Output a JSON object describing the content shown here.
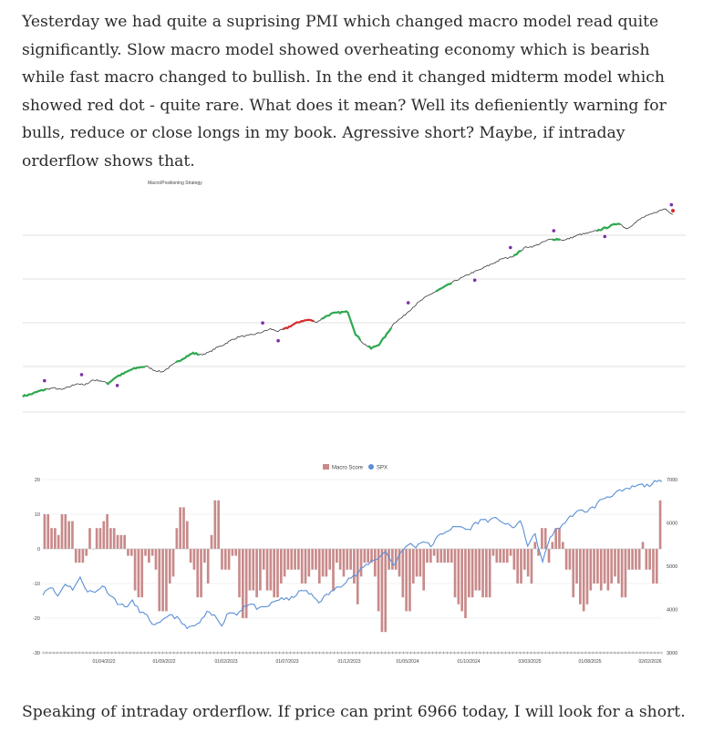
{
  "post": {
    "intro": "Yesterday we had quite a suprising PMI which changed macro model read quite significantly. Slow macro model showed overheating economy which is bearish while fast macro changed to bullish. In the end it changed midterm model which showed red dot - quite rare. What does it mean? Well its defieniently warning for bulls, reduce or close longs in my book. Agressive short? Maybe, if intraday orderflow shows that.",
    "outro": "Speaking of intraday orderflow. If price can print 6966 today, I will look for a short."
  },
  "chart_data": [
    {
      "type": "line",
      "title": "Macro/Positioning Strategy",
      "grid": true,
      "y_axis_labels_visible": false,
      "colors": {
        "price": "#3a3a3a",
        "bull": "#2ea84f",
        "bear": "#d62b2b",
        "marker": "#7b2fa8",
        "grid": "#d9d9d9"
      },
      "series_price": [
        3680,
        3710,
        3760,
        3800,
        3820,
        3790,
        3840,
        3900,
        3870,
        3960,
        3950,
        3900,
        4010,
        4070,
        4140,
        4180,
        4200,
        4130,
        4100,
        4190,
        4280,
        4360,
        4430,
        4400,
        4440,
        4520,
        4580,
        4660,
        4720,
        4730,
        4760,
        4800,
        4850,
        4810,
        4860,
        4930,
        4990,
        5010,
        4970,
        5060,
        5120,
        5140,
        5150,
        4760,
        4600,
        4510,
        4580,
        4750,
        4960,
        5050,
        5180,
        5300,
        5400,
        5480,
        5550,
        5620,
        5700,
        5760,
        5830,
        5880,
        5950,
        6010,
        6080,
        6100,
        6180,
        6280,
        6290,
        6350,
        6410,
        6420,
        6400,
        6450,
        6500,
        6520,
        6560,
        6600,
        6650,
        6700,
        6600,
        6690,
        6790,
        6840,
        6900,
        6950,
        6850
      ],
      "regimes": [
        {
          "state": "bull",
          "from": 0,
          "to": 3
        },
        {
          "state": "bull",
          "from": 11,
          "to": 16
        },
        {
          "state": "bull",
          "from": 20,
          "to": 23
        },
        {
          "state": "bear",
          "from": 34,
          "to": 38
        },
        {
          "state": "bull",
          "from": 39,
          "to": 44
        },
        {
          "state": "bull",
          "from": 45,
          "to": 48
        },
        {
          "state": "bull",
          "from": 54,
          "to": 56
        },
        {
          "state": "bull",
          "from": 64,
          "to": 65
        },
        {
          "state": "bull",
          "from": 69,
          "to": 70
        },
        {
          "state": "bull",
          "from": 75,
          "to": 78
        }
      ],
      "markers": [
        {
          "i": 3,
          "pos": "above"
        },
        {
          "i": 8,
          "pos": "above"
        },
        {
          "i": 13,
          "pos": "below"
        },
        {
          "i": 33,
          "pos": "above"
        },
        {
          "i": 35,
          "pos": "below"
        },
        {
          "i": 53,
          "pos": "above"
        },
        {
          "i": 62,
          "pos": "below"
        },
        {
          "i": 67,
          "pos": "above"
        },
        {
          "i": 73,
          "pos": "above"
        },
        {
          "i": 80,
          "pos": "below"
        },
        {
          "i": 89,
          "pos": "above"
        }
      ],
      "final_point": {
        "state": "bear"
      }
    },
    {
      "type": "bar",
      "legend": [
        "Macro Score",
        "SPX"
      ],
      "legend_position": "top-center",
      "series": [
        {
          "name": "Macro Score",
          "kind": "bar",
          "color": "#c98a8a",
          "values": [
            10,
            10,
            6,
            6,
            4,
            10,
            10,
            8,
            8,
            -4,
            -4,
            -4,
            -2,
            6,
            0,
            6,
            6,
            8,
            10,
            6,
            6,
            4,
            4,
            4,
            -2,
            -2,
            -12,
            -14,
            -14,
            -2,
            -4,
            -2,
            -6,
            -18,
            -18,
            -18,
            -10,
            -8,
            6,
            12,
            12,
            8,
            -4,
            -6,
            -14,
            -14,
            -4,
            -10,
            4,
            14,
            14,
            -6,
            -6,
            -6,
            -2,
            -2,
            -14,
            -20,
            -20,
            -12,
            -12,
            -14,
            -12,
            -6,
            -12,
            -12,
            -14,
            -14,
            -10,
            -8,
            -6,
            -6,
            -6,
            -6,
            -10,
            -10,
            -8,
            -6,
            -6,
            -10,
            -8,
            -8,
            -6,
            -12,
            -4,
            -6,
            -8,
            -6,
            -6,
            -10,
            -16,
            -8,
            -4,
            -4,
            -4,
            -8,
            -18,
            -24,
            -24,
            -6,
            -6,
            -6,
            -8,
            -14,
            -18,
            -18,
            -10,
            -8,
            -8,
            -12,
            -4,
            -4,
            -2,
            -4,
            -4,
            -4,
            -4,
            -4,
            -14,
            -16,
            -18,
            -20,
            -14,
            -14,
            -12,
            -12,
            -14,
            -14,
            -14,
            -2,
            -4,
            -4,
            -4,
            -4,
            -2,
            -6,
            -10,
            -10,
            -6,
            -8,
            -10,
            2,
            -2,
            6,
            6,
            -4,
            2,
            6,
            6,
            2,
            -6,
            -6,
            -14,
            -10,
            -16,
            -18,
            -16,
            -12,
            -10,
            -10,
            -12,
            -10,
            -12,
            -10,
            -8,
            -10,
            -14,
            -14,
            -6,
            -6,
            -6,
            -6,
            2,
            -6,
            -6,
            -10,
            -10,
            14
          ]
        },
        {
          "name": "SPX",
          "kind": "line",
          "color": "#5b8fd6",
          "axis": "right"
        }
      ],
      "y_left": {
        "range": [
          -30,
          20
        ],
        "ticks": [
          "-30",
          "-20",
          "-10",
          "0",
          "10",
          "20"
        ]
      },
      "y_right": {
        "range": [
          3000,
          7000
        ],
        "ticks": [
          "3000",
          "4000",
          "5000",
          "6000",
          "7000"
        ]
      },
      "x_ticks": [
        "01/04/2022",
        "01/09/2022",
        "01/02/2023",
        "01/07/2023",
        "01/12/2023",
        "01/05/2024",
        "01/10/2024",
        "03/03/2025",
        "01/08/2025",
        "02/02/2026"
      ],
      "spx_values": [
        4380,
        4540,
        4310,
        4600,
        4480,
        4720,
        4430,
        4390,
        4560,
        4350,
        4160,
        4060,
        4180,
        3970,
        3830,
        3620,
        3710,
        3900,
        3800,
        3620,
        3580,
        3690,
        3920,
        3850,
        3660,
        3960,
        3880,
        4090,
        4120,
        4000,
        4060,
        4170,
        4270,
        4210,
        4360,
        4450,
        4330,
        4180,
        4320,
        4450,
        4560,
        4720,
        4790,
        4980,
        5110,
        5200,
        5340,
        5020,
        5300,
        5520,
        5460,
        5590,
        5460,
        5680,
        5810,
        5880,
        5920,
        5830,
        5990,
        6080,
        6050,
        6110,
        5970,
        5890,
        6040,
        5500,
        5720,
        5080,
        5680,
        5860,
        6010,
        6190,
        6270,
        6280,
        6380,
        6560,
        6620,
        6710,
        6740,
        6820,
        6870,
        6860,
        6930,
        6950
      ]
    }
  ]
}
